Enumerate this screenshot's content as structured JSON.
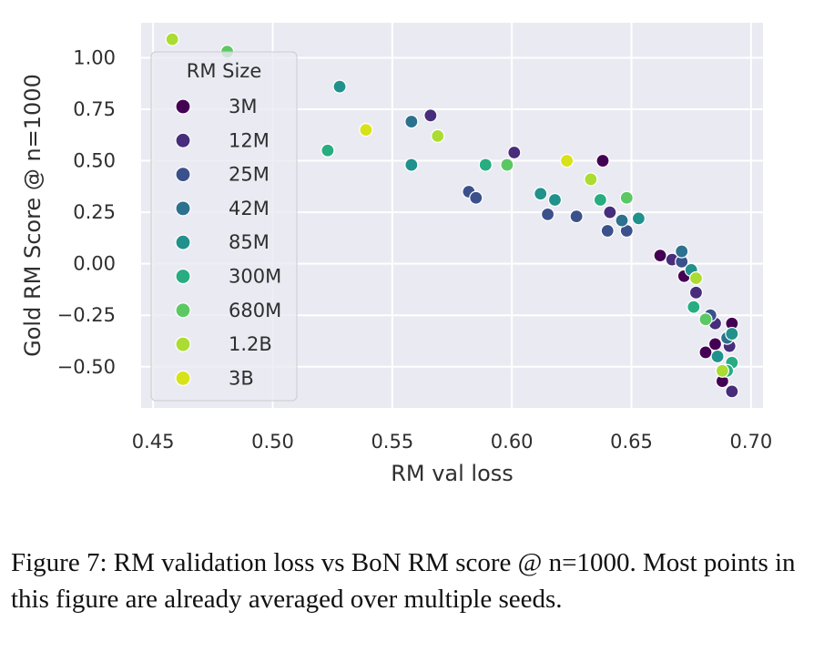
{
  "caption": "Figure 7: RM validation loss vs BoN RM score @ n=1000. Most points in this figure are already averaged over multiple seeds.",
  "chart_data": {
    "type": "scatter",
    "xlabel": "RM val loss",
    "ylabel": "Gold RM Score @ n=1000",
    "xlim": [
      0.445,
      0.705
    ],
    "ylim": [
      -0.7,
      1.17
    ],
    "xticks": [
      "0.45",
      "0.50",
      "0.55",
      "0.60",
      "0.65",
      "0.70"
    ],
    "yticks": [
      "1.00",
      "0.75",
      "0.50",
      "0.25",
      "0.00",
      "−0.25",
      "−0.50"
    ],
    "grid": true,
    "background": "#eaeaf2",
    "legend": {
      "title": "RM Size",
      "placement": "upper-left"
    },
    "series": [
      {
        "name": "3M",
        "color": "#440154",
        "points": [
          [
            0.638,
            0.5
          ],
          [
            0.662,
            0.04
          ],
          [
            0.672,
            -0.06
          ],
          [
            0.681,
            -0.43
          ],
          [
            0.685,
            -0.39
          ],
          [
            0.692,
            -0.29
          ],
          [
            0.688,
            -0.57
          ]
        ]
      },
      {
        "name": "12M",
        "color": "#472d7b",
        "points": [
          [
            0.601,
            0.54
          ],
          [
            0.566,
            0.72
          ],
          [
            0.641,
            0.25
          ],
          [
            0.667,
            0.02
          ],
          [
            0.677,
            -0.14
          ],
          [
            0.685,
            -0.29
          ],
          [
            0.691,
            -0.4
          ],
          [
            0.692,
            -0.62
          ]
        ]
      },
      {
        "name": "25M",
        "color": "#3b518b",
        "points": [
          [
            0.582,
            0.35
          ],
          [
            0.585,
            0.32
          ],
          [
            0.615,
            0.24
          ],
          [
            0.627,
            0.23
          ],
          [
            0.64,
            0.16
          ],
          [
            0.648,
            0.16
          ],
          [
            0.671,
            0.01
          ],
          [
            0.683,
            -0.25
          ]
        ]
      },
      {
        "name": "42M",
        "color": "#2c718e",
        "points": [
          [
            0.558,
            0.69
          ],
          [
            0.646,
            0.21
          ],
          [
            0.671,
            0.06
          ],
          [
            0.69,
            -0.36
          ]
        ]
      },
      {
        "name": "85M",
        "color": "#21918c",
        "points": [
          [
            0.528,
            0.86
          ],
          [
            0.558,
            0.48
          ],
          [
            0.612,
            0.34
          ],
          [
            0.618,
            0.31
          ],
          [
            0.653,
            0.22
          ],
          [
            0.675,
            -0.03
          ],
          [
            0.686,
            -0.45
          ],
          [
            0.692,
            -0.34
          ]
        ]
      },
      {
        "name": "300M",
        "color": "#27ad81",
        "points": [
          [
            0.523,
            0.55
          ],
          [
            0.589,
            0.48
          ],
          [
            0.637,
            0.31
          ],
          [
            0.676,
            -0.21
          ],
          [
            0.692,
            -0.48
          ],
          [
            0.69,
            -0.52
          ]
        ]
      },
      {
        "name": "680M",
        "color": "#5cc863",
        "points": [
          [
            0.481,
            1.03
          ],
          [
            0.598,
            0.48
          ],
          [
            0.648,
            0.32
          ],
          [
            0.681,
            -0.27
          ]
        ]
      },
      {
        "name": "1.2B",
        "color": "#aadc32",
        "points": [
          [
            0.458,
            1.09
          ],
          [
            0.569,
            0.62
          ],
          [
            0.633,
            0.41
          ],
          [
            0.677,
            -0.07
          ],
          [
            0.688,
            -0.52
          ]
        ]
      },
      {
        "name": "3B",
        "color": "#d8e219",
        "points": [
          [
            0.539,
            0.65
          ],
          [
            0.623,
            0.5
          ]
        ]
      }
    ]
  }
}
